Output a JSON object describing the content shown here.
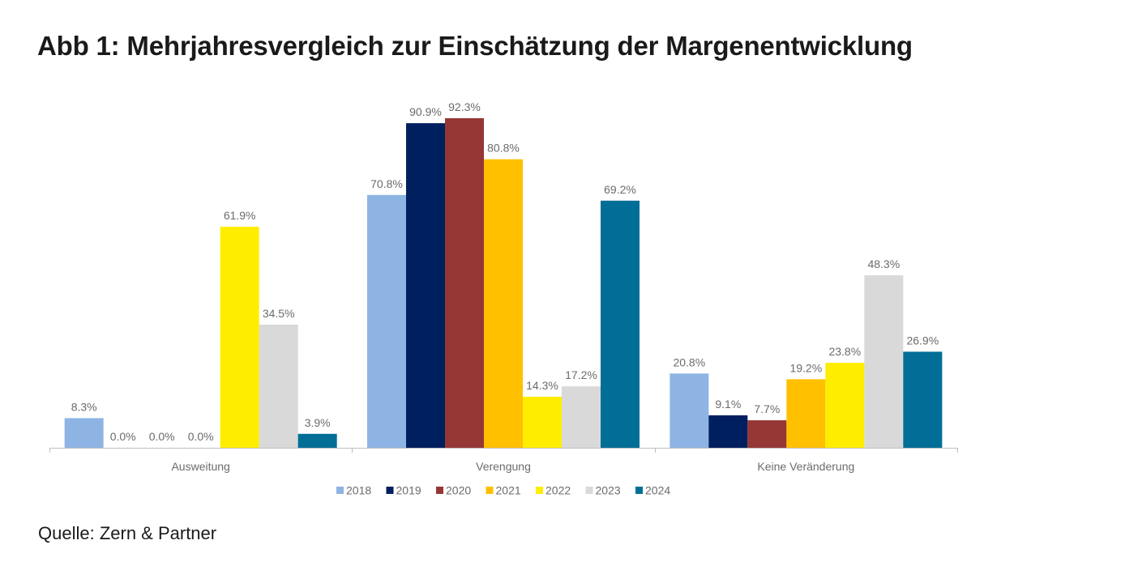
{
  "title": "Abb 1: Mehrjahresvergleich zur Einschätzung der Margenentwicklung",
  "source": "Quelle: Zern & Partner",
  "chart_data": {
    "type": "bar",
    "title": "Abb 1: Mehrjahresvergleich zur Einschätzung der Margenentwicklung",
    "xlabel": "",
    "ylabel": "",
    "ylim": [
      0,
      100
    ],
    "grid": false,
    "legend": "bottom",
    "value_format": "percent-1-decimal",
    "categories": [
      "Ausweitung",
      "Verengung",
      "Keine Veränderung"
    ],
    "series": [
      {
        "name": "2018",
        "color": "#8EB4E3",
        "values": [
          8.3,
          70.8,
          20.8
        ]
      },
      {
        "name": "2019",
        "color": "#001F5F",
        "values": [
          0.0,
          90.9,
          9.1
        ]
      },
      {
        "name": "2020",
        "color": "#953735",
        "values": [
          0.0,
          92.3,
          7.7
        ]
      },
      {
        "name": "2021",
        "color": "#FFC000",
        "values": [
          0.0,
          80.8,
          19.2
        ]
      },
      {
        "name": "2022",
        "color": "#FFED00",
        "values": [
          61.9,
          14.3,
          23.8
        ]
      },
      {
        "name": "2023",
        "color": "#D9D9D9",
        "values": [
          34.5,
          17.2,
          48.3
        ]
      },
      {
        "name": "2024",
        "color": "#006E96",
        "values": [
          3.9,
          69.2,
          26.9
        ]
      }
    ]
  }
}
